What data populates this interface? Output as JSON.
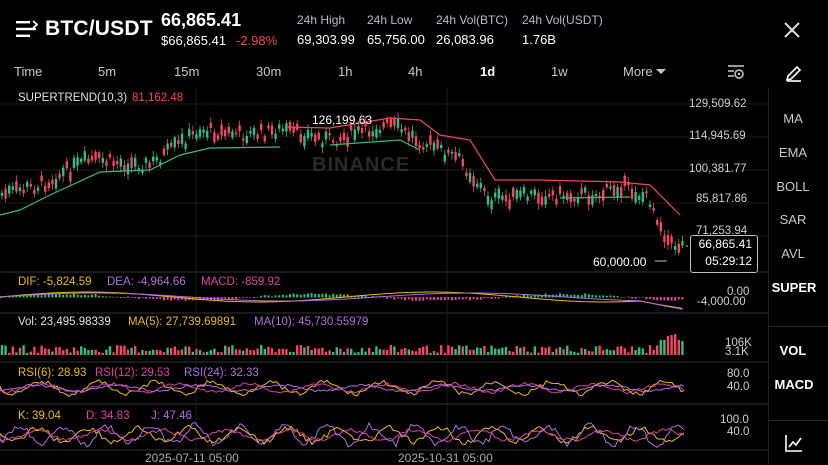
{
  "header": {
    "pair": "BTC/USDT",
    "price": "66,865.41",
    "price_usd": "$66,865.41",
    "change": "-2.98%",
    "stats": [
      {
        "label": "24h High",
        "value": "69,303.99"
      },
      {
        "label": "24h Low",
        "value": "65,756.00"
      },
      {
        "label": "24h Vol(BTC)",
        "value": "26,083.96"
      },
      {
        "label": "24h Vol(USDT)",
        "value": "1.76B"
      }
    ]
  },
  "timeframes": [
    "Time",
    "5m",
    "15m",
    "30m",
    "1h",
    "4h",
    "1d",
    "1w"
  ],
  "active_timeframe": "1d",
  "more_label": "More",
  "sidebar": {
    "items": [
      "MA",
      "EMA",
      "BOLL",
      "SAR",
      "AVL",
      "SUPER",
      "VOL",
      "MACD"
    ],
    "active": [
      "SUPER",
      "VOL",
      "MACD"
    ]
  },
  "main_chart": {
    "indicator_name": "SUPERTREND(10,3)",
    "indicator_value": "81,162.48",
    "y_labels": [
      "129,509.62",
      "114,945.69",
      "100,381.77",
      "85,817.86",
      "71,253.94"
    ],
    "high_marker": "126,199.63",
    "low_marker": "60,000.00",
    "current_price": "66,865.41",
    "countdown": "05:29:12",
    "watermark": "BINANCE"
  },
  "macd": {
    "dif": "DIF: -5,824.59",
    "dea": "DEA: -4,964.66",
    "macd": "MACD: -859.92",
    "y_labels": [
      "0.00",
      "-4,000.00"
    ]
  },
  "vol": {
    "vol": "Vol: 23,495.98339",
    "ma5": "MA(5): 27,739.69891",
    "ma10": "MA(10): 45,730.55979",
    "y_labels": [
      "106K",
      "3.1K"
    ]
  },
  "rsi": {
    "rsi6": "RSI(6): 28.93",
    "rsi12": "RSI(12): 29.53",
    "rsi24": "RSI(24): 32.33",
    "y_labels": [
      "80.0",
      "40.0"
    ]
  },
  "kdj": {
    "k": "K: 39.04",
    "d": "D: 34.83",
    "j": "J: 47.46",
    "y_labels": [
      "100.0",
      "40.0"
    ]
  },
  "x_labels": [
    "2025-07-11 05:00",
    "2025-10-31 05:00"
  ],
  "colors": {
    "up": "#2ebd85",
    "down": "#f6465d",
    "yellow": "#f0b90b",
    "purple": "#b06fe0",
    "pink": "#e040a0"
  }
}
